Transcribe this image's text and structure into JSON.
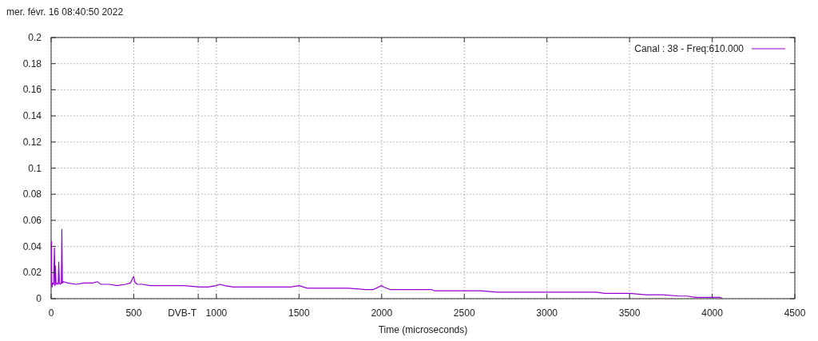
{
  "chart_data": {
    "type": "line",
    "title": "mer. févr. 16 08:40:50 2022",
    "xlabel": "Time (microseconds)",
    "xlim": [
      0,
      4500
    ],
    "xticks": [
      0,
      500,
      1000,
      1500,
      2000,
      2500,
      3000,
      3500,
      4000,
      4500
    ],
    "ylim": [
      0,
      0.2
    ],
    "yticks": [
      0,
      0.02,
      0.04,
      0.06,
      0.08,
      0.1,
      0.12,
      0.14,
      0.16,
      0.18,
      0.2
    ],
    "grid": true,
    "legend": "top right",
    "ref_lines": [
      {
        "axis": "x",
        "value": 890,
        "label": "DVB-T"
      }
    ],
    "series": [
      {
        "name": "Canal : 38 - Freq:610.000",
        "color": "#9400d3",
        "x": [
          2,
          4,
          6,
          10,
          15,
          20,
          23,
          26,
          30,
          40,
          43,
          46,
          50,
          55,
          62,
          65,
          68,
          75,
          100,
          150,
          200,
          250,
          280,
          290,
          300,
          350,
          400,
          450,
          480,
          495,
          500,
          505,
          520,
          550,
          600,
          700,
          800,
          900,
          950,
          1000,
          1020,
          1050,
          1100,
          1200,
          1300,
          1400,
          1450,
          1500,
          1550,
          1600,
          1700,
          1800,
          1900,
          1950,
          2000,
          2010,
          2050,
          2100,
          2200,
          2300,
          2320,
          2400,
          2500,
          2600,
          2700,
          2800,
          2900,
          3000,
          3100,
          3200,
          3300,
          3350,
          3400,
          3500,
          3600,
          3700,
          3800,
          3850,
          3900,
          3950,
          4000,
          4050,
          4060
        ],
        "values": [
          0.044,
          0.01,
          0.009,
          0.012,
          0.011,
          0.039,
          0.01,
          0.025,
          0.011,
          0.012,
          0.011,
          0.028,
          0.012,
          0.011,
          0.012,
          0.053,
          0.012,
          0.013,
          0.012,
          0.011,
          0.012,
          0.012,
          0.013,
          0.012,
          0.011,
          0.011,
          0.01,
          0.011,
          0.012,
          0.016,
          0.017,
          0.013,
          0.011,
          0.011,
          0.01,
          0.01,
          0.01,
          0.009,
          0.009,
          0.01,
          0.011,
          0.01,
          0.009,
          0.009,
          0.009,
          0.009,
          0.009,
          0.01,
          0.008,
          0.008,
          0.008,
          0.008,
          0.007,
          0.007,
          0.01,
          0.009,
          0.007,
          0.007,
          0.007,
          0.007,
          0.006,
          0.006,
          0.006,
          0.006,
          0.005,
          0.005,
          0.005,
          0.005,
          0.005,
          0.005,
          0.005,
          0.004,
          0.004,
          0.004,
          0.003,
          0.003,
          0.002,
          0.002,
          0.001,
          0.001,
          0.001,
          0.001,
          0
        ]
      }
    ]
  }
}
